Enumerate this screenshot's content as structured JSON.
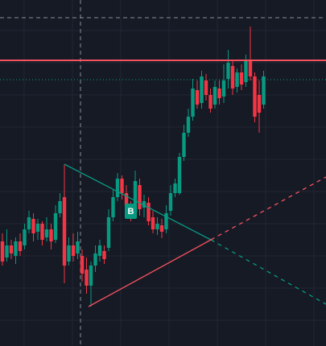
{
  "marker": {
    "label": "B"
  }
}
